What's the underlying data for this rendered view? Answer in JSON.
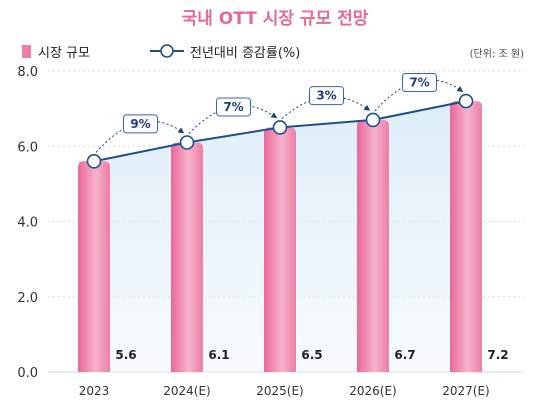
{
  "chart_data": {
    "type": "bar",
    "title": "국내 OTT 시장 규모 전망",
    "unit": "(단위: 조 원)",
    "categories": [
      "2023",
      "2024(E)",
      "2025(E)",
      "2026(E)",
      "2027(E)"
    ],
    "series": [
      {
        "name": "시장 규모",
        "type": "bar",
        "values": [
          5.6,
          6.1,
          6.5,
          6.7,
          7.2
        ],
        "labels": [
          "5.6",
          "6.1",
          "6.5",
          "6.7",
          "7.2"
        ],
        "color": "#ee7fa3"
      },
      {
        "name": "전년대비 증감률(%)",
        "type": "line",
        "values": [
          5.6,
          6.1,
          6.5,
          6.7,
          7.2
        ],
        "color": "#1f4e8c"
      }
    ],
    "growth_labels": [
      "9%",
      "7%",
      "3%",
      "7%"
    ],
    "yticks": [
      "0.0",
      "2.0",
      "4.0",
      "6.0",
      "8.0"
    ],
    "ylim": [
      0,
      8
    ],
    "grid": true,
    "legend_position": "top-left"
  }
}
